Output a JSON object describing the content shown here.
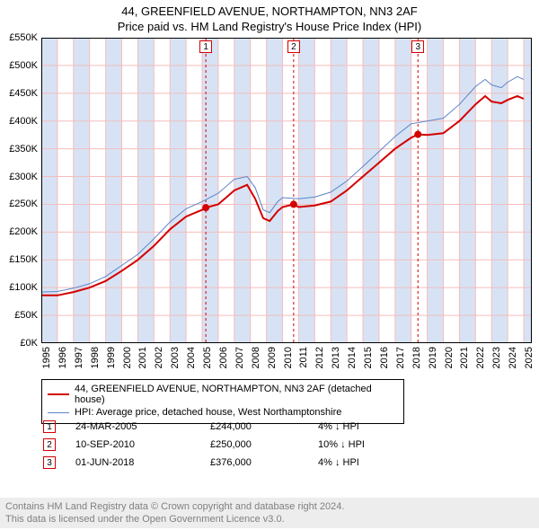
{
  "title": "44, GREENFIELD AVENUE, NORTHAMPTON, NN3 2AF",
  "subtitle": "Price paid vs. HM Land Registry's House Price Index (HPI)",
  "y_axis": {
    "min": 0,
    "max": 550000,
    "step": 50000,
    "prefix": "£",
    "fmt": "K"
  },
  "x_axis": {
    "years": [
      1995,
      1996,
      1997,
      1998,
      1999,
      2000,
      2001,
      2002,
      2003,
      2004,
      2005,
      2006,
      2007,
      2008,
      2009,
      2010,
      2011,
      2012,
      2013,
      2014,
      2015,
      2016,
      2017,
      2018,
      2019,
      2020,
      2021,
      2022,
      2023,
      2024,
      2025
    ]
  },
  "band_color": "#d7e3f4",
  "grid_color": "#f4bdbd",
  "marker_border": "#d30000",
  "series": [
    {
      "id": "property",
      "label": "44, GREENFIELD AVENUE, NORTHAMPTON, NN3 2AF (detached house)",
      "color": "#d30000",
      "width": 2,
      "points": [
        [
          1995.0,
          86000
        ],
        [
          1996.0,
          86000
        ],
        [
          1997.0,
          92000
        ],
        [
          1998.0,
          100000
        ],
        [
          1999.0,
          112000
        ],
        [
          2000.0,
          130000
        ],
        [
          2001.0,
          150000
        ],
        [
          2002.0,
          175000
        ],
        [
          2003.0,
          205000
        ],
        [
          2004.0,
          228000
        ],
        [
          2005.0,
          240000
        ],
        [
          2005.23,
          244000
        ],
        [
          2006.0,
          250000
        ],
        [
          2007.0,
          275000
        ],
        [
          2007.8,
          285000
        ],
        [
          2008.3,
          260000
        ],
        [
          2008.8,
          225000
        ],
        [
          2009.2,
          220000
        ],
        [
          2009.7,
          238000
        ],
        [
          2010.0,
          245000
        ],
        [
          2010.69,
          250000
        ],
        [
          2011.0,
          245000
        ],
        [
          2012.0,
          248000
        ],
        [
          2013.0,
          255000
        ],
        [
          2014.0,
          275000
        ],
        [
          2015.0,
          300000
        ],
        [
          2016.0,
          325000
        ],
        [
          2017.0,
          350000
        ],
        [
          2018.0,
          370000
        ],
        [
          2018.42,
          376000
        ],
        [
          2019.0,
          375000
        ],
        [
          2020.0,
          378000
        ],
        [
          2021.0,
          400000
        ],
        [
          2022.0,
          430000
        ],
        [
          2022.6,
          445000
        ],
        [
          2023.0,
          435000
        ],
        [
          2023.6,
          432000
        ],
        [
          2024.0,
          438000
        ],
        [
          2024.6,
          445000
        ],
        [
          2025.0,
          440000
        ]
      ]
    },
    {
      "id": "hpi",
      "label": "HPI: Average price, detached house, West Northamptonshire",
      "color": "#5b85c8",
      "width": 1,
      "points": [
        [
          1995.0,
          92000
        ],
        [
          1996.0,
          93000
        ],
        [
          1997.0,
          99000
        ],
        [
          1998.0,
          107000
        ],
        [
          1999.0,
          120000
        ],
        [
          2000.0,
          140000
        ],
        [
          2001.0,
          160000
        ],
        [
          2002.0,
          188000
        ],
        [
          2003.0,
          218000
        ],
        [
          2004.0,
          242000
        ],
        [
          2005.0,
          255000
        ],
        [
          2006.0,
          270000
        ],
        [
          2007.0,
          295000
        ],
        [
          2007.8,
          300000
        ],
        [
          2008.3,
          280000
        ],
        [
          2008.8,
          240000
        ],
        [
          2009.2,
          235000
        ],
        [
          2009.7,
          255000
        ],
        [
          2010.0,
          262000
        ],
        [
          2011.0,
          260000
        ],
        [
          2012.0,
          263000
        ],
        [
          2013.0,
          272000
        ],
        [
          2014.0,
          292000
        ],
        [
          2015.0,
          318000
        ],
        [
          2016.0,
          345000
        ],
        [
          2017.0,
          372000
        ],
        [
          2018.0,
          395000
        ],
        [
          2019.0,
          400000
        ],
        [
          2020.0,
          405000
        ],
        [
          2021.0,
          430000
        ],
        [
          2022.0,
          462000
        ],
        [
          2022.6,
          475000
        ],
        [
          2023.0,
          465000
        ],
        [
          2023.6,
          460000
        ],
        [
          2024.0,
          470000
        ],
        [
          2024.6,
          480000
        ],
        [
          2025.0,
          475000
        ]
      ]
    }
  ],
  "sales": [
    {
      "n": "1",
      "year": 2005.23,
      "value": 244000,
      "date": "24-MAR-2005",
      "price": "£244,000",
      "delta": "4% ↓ HPI"
    },
    {
      "n": "2",
      "year": 2010.69,
      "value": 250000,
      "date": "10-SEP-2010",
      "price": "£250,000",
      "delta": "10% ↓ HPI"
    },
    {
      "n": "3",
      "year": 2018.42,
      "value": 376000,
      "date": "01-JUN-2018",
      "price": "£376,000",
      "delta": "4% ↓ HPI"
    }
  ],
  "footer1": "Contains HM Land Registry data © Crown copyright and database right 2024.",
  "footer2": "This data is licensed under the Open Government Licence v3.0."
}
